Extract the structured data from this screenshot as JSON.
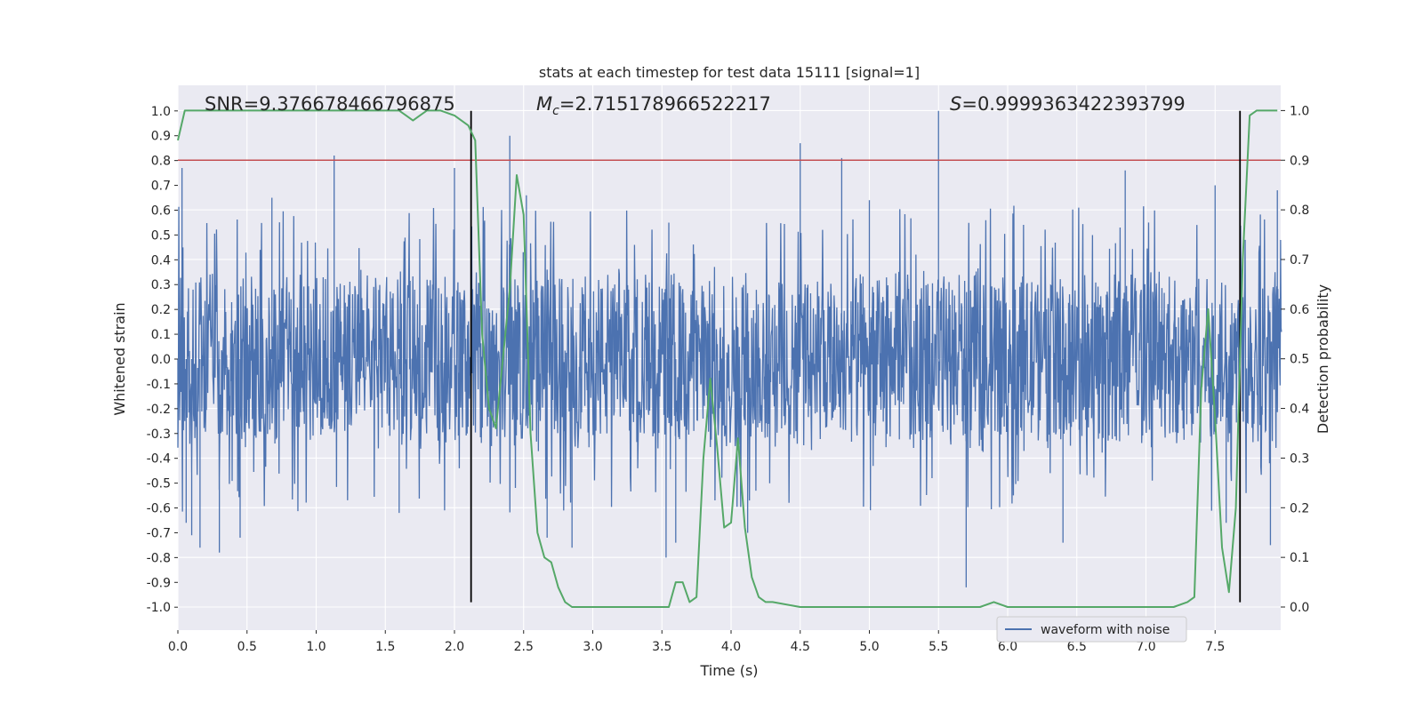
{
  "chart_data": {
    "type": "line",
    "title": "stats at each timestep for test data 15111 [signal=1]",
    "xlabel": "Time (s)",
    "ylabel": "Whitened strain",
    "y2label": "Detection probability",
    "xlim": [
      0.0,
      8.0
    ],
    "ylim": [
      -1.08,
      1.1
    ],
    "y2lim": [
      -0.05,
      1.05
    ],
    "xticks": [
      0.0,
      0.5,
      1.0,
      1.5,
      2.0,
      2.5,
      3.0,
      3.5,
      4.0,
      4.5,
      5.0,
      5.5,
      6.0,
      6.5,
      7.0,
      7.5
    ],
    "yticks": [
      -1.0,
      -0.9,
      -0.8,
      -0.7,
      -0.6,
      -0.5,
      -0.4,
      -0.3,
      -0.2,
      -0.1,
      0.0,
      0.1,
      0.2,
      0.3,
      0.4,
      0.5,
      0.6,
      0.7,
      0.8,
      0.9,
      1.0
    ],
    "y2ticks": [
      0.0,
      0.1,
      0.2,
      0.3,
      0.4,
      0.5,
      0.6,
      0.7,
      0.8,
      0.9,
      1.0
    ],
    "grid": true,
    "legend": {
      "location": "lower-right",
      "entries": [
        "waveform with noise"
      ]
    },
    "annotations": {
      "snr": "SNR=9.376678466796875",
      "mc_symbol": "M",
      "mc_sub": "c",
      "mc_value": "=2.715178966522217",
      "s_symbol": "S",
      "s_value": "=0.9999363422393799"
    },
    "threshold_line": {
      "axis": "y2",
      "value": 0.9,
      "color": "#c44e52"
    },
    "vertical_lines": {
      "x": [
        2.12,
        7.68
      ],
      "range": [
        -0.98,
        1.0
      ],
      "color": "#000000"
    },
    "series": [
      {
        "name": "waveform with noise",
        "axis": "y",
        "color": "#4c72b0",
        "style": "dense noisy strain, typical envelope ±0.4",
        "spikes": [
          [
            0.03,
            0.77
          ],
          [
            0.06,
            -0.66
          ],
          [
            0.1,
            -0.71
          ],
          [
            0.16,
            -0.76
          ],
          [
            0.3,
            -0.78
          ],
          [
            0.45,
            -0.72
          ],
          [
            0.68,
            0.65
          ],
          [
            1.13,
            0.82
          ],
          [
            1.6,
            -0.62
          ],
          [
            2.0,
            0.77
          ],
          [
            2.4,
            0.9
          ],
          [
            2.52,
            0.66
          ],
          [
            2.67,
            -0.72
          ],
          [
            2.85,
            -0.76
          ],
          [
            3.53,
            -0.8
          ],
          [
            3.55,
            0.55
          ],
          [
            3.6,
            -0.74
          ],
          [
            4.12,
            -0.7
          ],
          [
            4.5,
            0.87
          ],
          [
            4.8,
            0.81
          ],
          [
            5.0,
            0.64
          ],
          [
            5.5,
            1.0
          ],
          [
            5.7,
            -0.92
          ],
          [
            6.4,
            -0.74
          ],
          [
            6.85,
            0.76
          ],
          [
            7.5,
            0.7
          ],
          [
            7.58,
            -0.66
          ],
          [
            7.9,
            -0.75
          ],
          [
            7.95,
            0.68
          ]
        ]
      },
      {
        "name": "",
        "axis": "y2",
        "color": "#55a868",
        "x": [
          0.0,
          0.05,
          0.1,
          0.2,
          0.4,
          0.6,
          0.8,
          1.0,
          1.2,
          1.4,
          1.6,
          1.65,
          1.7,
          1.75,
          1.8,
          1.85,
          1.9,
          2.0,
          2.05,
          2.1,
          2.15,
          2.2,
          2.25,
          2.3,
          2.4,
          2.45,
          2.5,
          2.55,
          2.6,
          2.65,
          2.7,
          2.75,
          2.8,
          2.85,
          2.9,
          3.0,
          3.2,
          3.4,
          3.55,
          3.6,
          3.65,
          3.7,
          3.75,
          3.8,
          3.85,
          3.9,
          3.95,
          4.0,
          4.05,
          4.1,
          4.15,
          4.2,
          4.25,
          4.3,
          4.5,
          4.7,
          5.0,
          5.5,
          5.8,
          5.9,
          6.0,
          6.5,
          7.0,
          7.2,
          7.3,
          7.35,
          7.4,
          7.45,
          7.5,
          7.55,
          7.6,
          7.65,
          7.7,
          7.75,
          7.8,
          7.85,
          7.95
        ],
        "y": [
          0.94,
          1.0,
          1.0,
          1.0,
          1.0,
          1.0,
          1.0,
          1.0,
          1.0,
          1.0,
          1.0,
          0.99,
          0.98,
          0.99,
          1.0,
          1.0,
          1.0,
          0.99,
          0.98,
          0.97,
          0.94,
          0.55,
          0.4,
          0.36,
          0.64,
          0.87,
          0.79,
          0.35,
          0.15,
          0.1,
          0.09,
          0.04,
          0.01,
          0.0,
          0.0,
          0.0,
          0.0,
          0.0,
          0.0,
          0.05,
          0.05,
          0.01,
          0.02,
          0.3,
          0.46,
          0.32,
          0.16,
          0.17,
          0.34,
          0.16,
          0.06,
          0.02,
          0.01,
          0.01,
          0.0,
          0.0,
          0.0,
          0.0,
          0.0,
          0.01,
          0.0,
          0.0,
          0.0,
          0.0,
          0.01,
          0.02,
          0.44,
          0.6,
          0.38,
          0.12,
          0.03,
          0.2,
          0.7,
          0.99,
          1.0,
          1.0,
          1.0
        ]
      }
    ]
  }
}
